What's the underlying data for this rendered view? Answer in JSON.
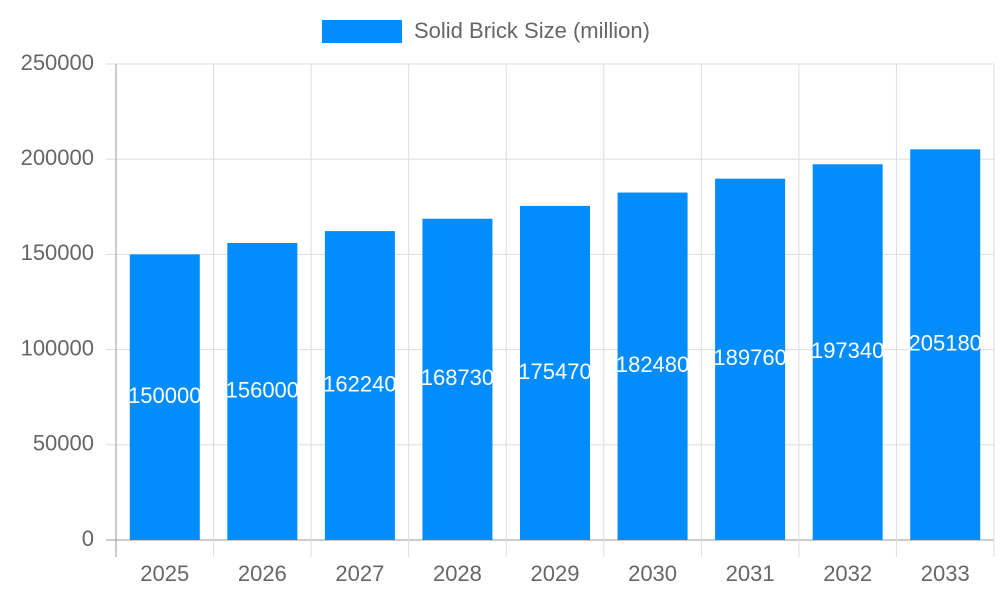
{
  "chart_data": {
    "type": "bar",
    "categories": [
      "2025",
      "2026",
      "2027",
      "2028",
      "2029",
      "2030",
      "2031",
      "2032",
      "2033"
    ],
    "series": [
      {
        "name": "Solid Brick Size (million)",
        "color": "#038cfc",
        "values": [
          150000,
          156000,
          162240,
          168730,
          175470,
          182480,
          189760,
          197340,
          205180
        ]
      }
    ],
    "ylim": [
      0,
      250000
    ],
    "yticks": [
      0,
      50000,
      100000,
      150000,
      200000,
      250000
    ],
    "grid": true,
    "legend": "top"
  }
}
